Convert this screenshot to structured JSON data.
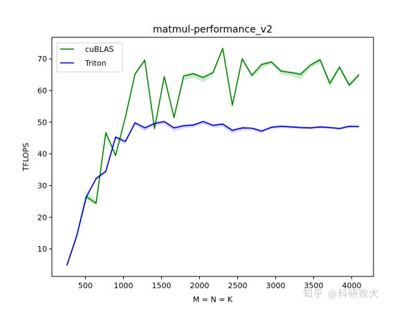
{
  "chart_data": {
    "type": "line",
    "title": "matmul-performance_v2",
    "xlabel": "M = N = K",
    "ylabel": "TFLOPS",
    "xlim": [
      59,
      4286
    ],
    "ylim": [
      1.3,
      76.8
    ],
    "xticks": [
      500,
      1000,
      1500,
      2000,
      2500,
      3000,
      3500,
      4000
    ],
    "yticks": [
      10,
      20,
      30,
      40,
      50,
      60,
      70
    ],
    "grid": false,
    "legend_position": "upper left",
    "x": [
      256,
      384,
      512,
      640,
      768,
      896,
      1024,
      1152,
      1280,
      1408,
      1536,
      1664,
      1792,
      1920,
      2048,
      2176,
      2304,
      2432,
      2560,
      2688,
      2816,
      2944,
      3072,
      3200,
      3328,
      3456,
      3584,
      3712,
      3840,
      3968,
      4096
    ],
    "series": [
      {
        "name": "cuBLAS",
        "color": "#008000",
        "band_color": "#7fcc7f",
        "values": [
          4.8,
          14.0,
          26.5,
          24.4,
          46.7,
          39.5,
          51.5,
          65.2,
          69.6,
          48.0,
          64.4,
          51.5,
          64.6,
          65.3,
          64.1,
          65.7,
          73.3,
          55.4,
          70.0,
          64.8,
          68.2,
          69.0,
          66.1,
          65.7,
          65.1,
          68.0,
          69.7,
          62.3,
          67.4,
          61.7,
          65.0
        ],
        "band_low": [
          4.5,
          13.6,
          25.5,
          23.8,
          46.0,
          39.0,
          51.0,
          64.6,
          69.0,
          47.5,
          63.8,
          51.0,
          63.2,
          64.0,
          62.8,
          64.5,
          72.6,
          54.8,
          69.4,
          63.8,
          67.0,
          68.3,
          65.0,
          64.6,
          63.5,
          67.0,
          68.8,
          61.0,
          66.5,
          60.8,
          64.2
        ],
        "band_high": [
          5.1,
          14.4,
          28.5,
          25.0,
          47.3,
          40.0,
          52.0,
          65.6,
          70.0,
          48.5,
          64.8,
          52.0,
          65.0,
          65.7,
          64.5,
          66.1,
          73.8,
          55.9,
          70.5,
          65.3,
          68.7,
          69.4,
          66.5,
          66.1,
          65.7,
          68.5,
          70.3,
          63.0,
          67.9,
          62.4,
          65.6
        ]
      },
      {
        "name": "Triton",
        "color": "#0000cd",
        "band_color": "#9a9af0",
        "values": [
          4.8,
          14.0,
          26.4,
          32.2,
          34.5,
          45.3,
          43.9,
          49.8,
          48.2,
          49.6,
          50.2,
          48.2,
          48.9,
          49.1,
          50.2,
          49.0,
          49.4,
          47.4,
          48.2,
          48.1,
          47.2,
          48.4,
          48.7,
          48.5,
          48.3,
          48.2,
          48.5,
          48.3,
          48.0,
          48.7,
          48.6
        ],
        "band_low": [
          4.6,
          13.7,
          26.0,
          31.6,
          33.8,
          44.6,
          43.0,
          49.0,
          47.2,
          48.8,
          49.4,
          47.2,
          48.0,
          48.3,
          49.4,
          48.2,
          48.5,
          46.4,
          47.4,
          47.4,
          46.6,
          47.8,
          48.1,
          48.0,
          47.8,
          47.7,
          48.0,
          47.8,
          47.5,
          48.2,
          48.1
        ],
        "band_high": [
          5.0,
          14.3,
          26.8,
          32.6,
          35.0,
          45.8,
          44.4,
          50.2,
          48.7,
          50.0,
          50.6,
          48.6,
          49.3,
          49.5,
          50.6,
          49.4,
          49.8,
          47.9,
          48.6,
          48.5,
          47.6,
          48.8,
          49.1,
          48.9,
          48.7,
          48.6,
          48.9,
          48.7,
          48.4,
          49.1,
          49.0
        ]
      }
    ]
  },
  "watermark": "知乎 @科研败犬"
}
